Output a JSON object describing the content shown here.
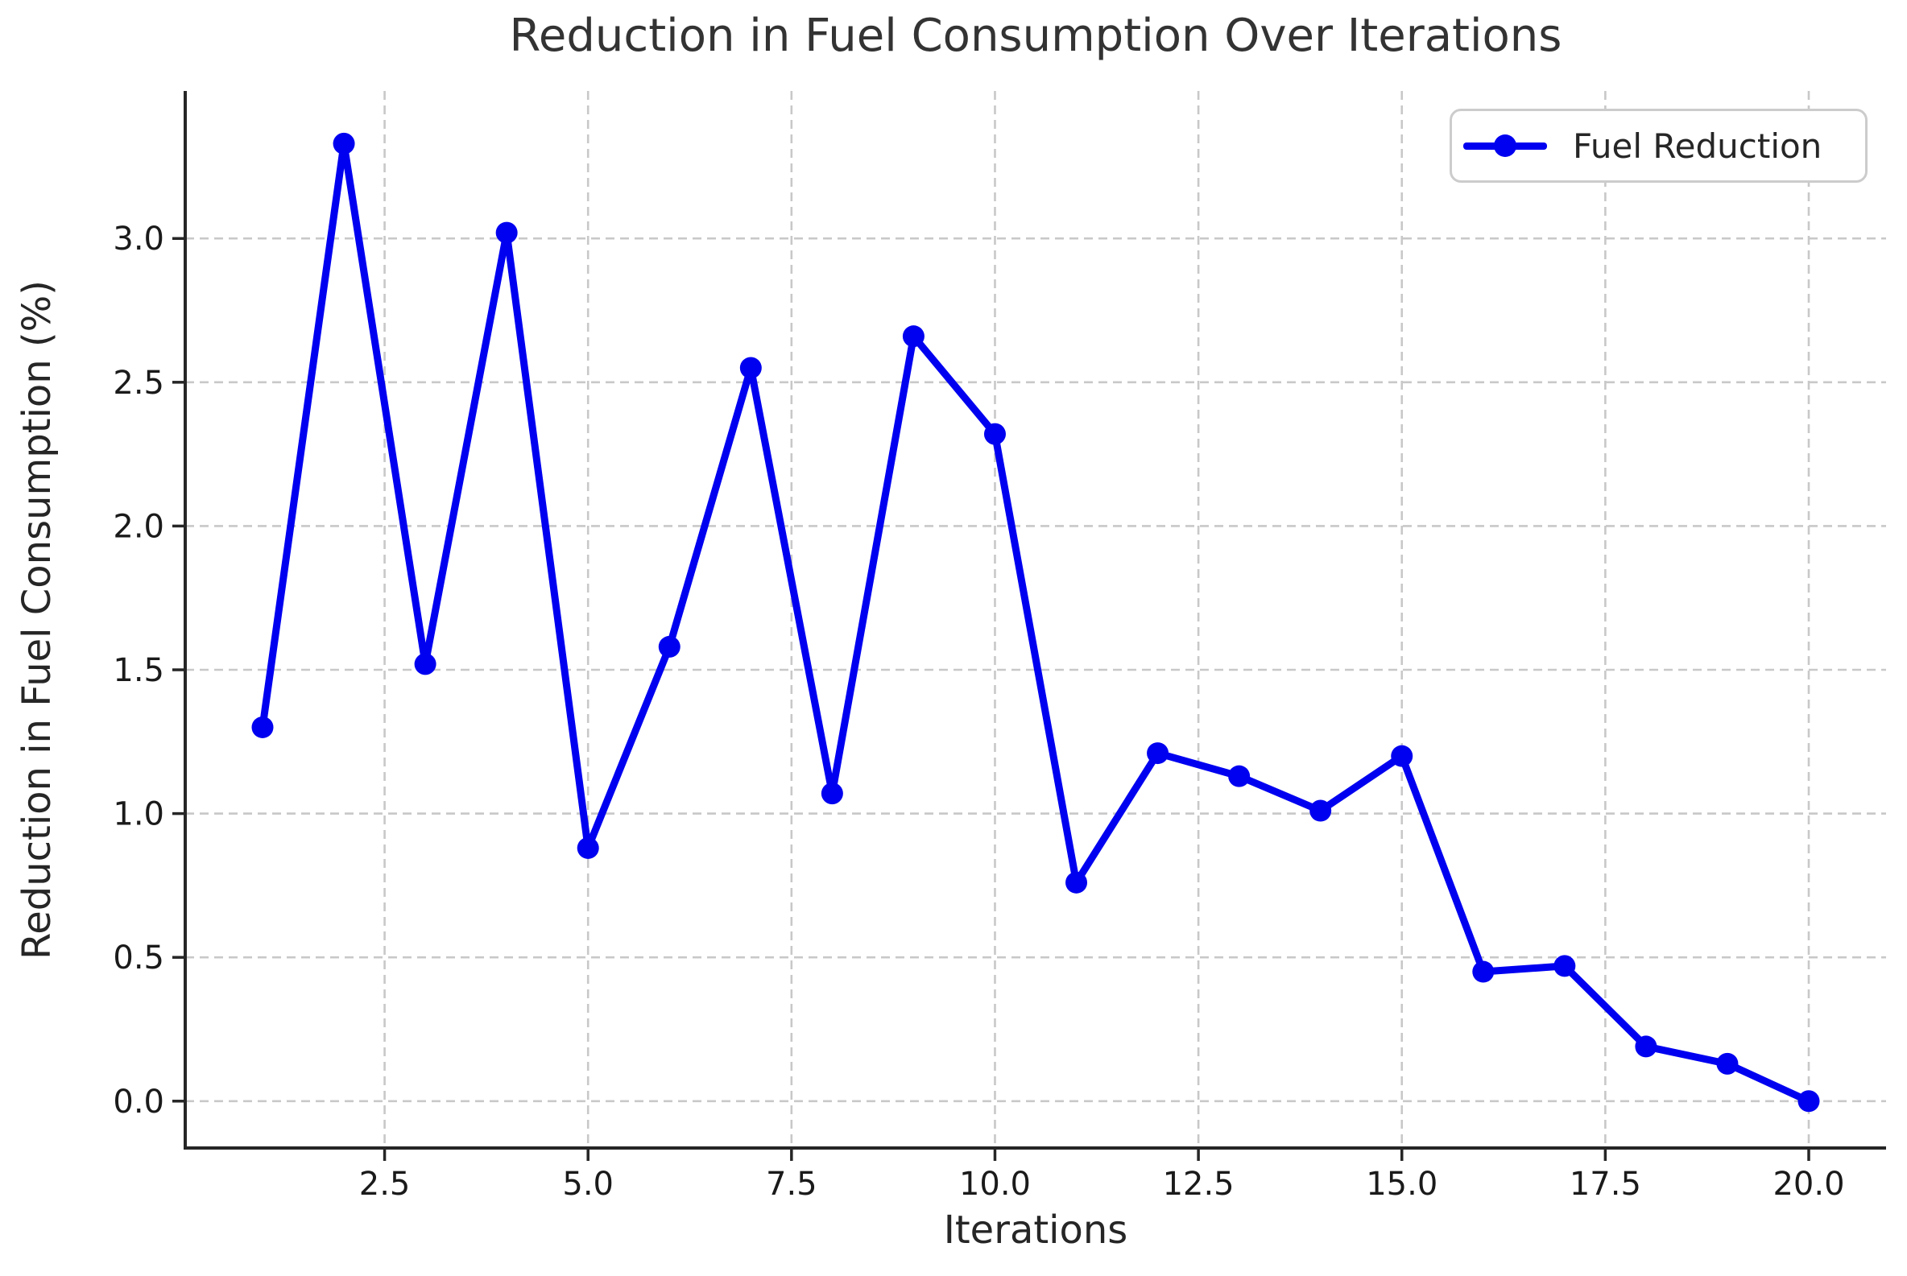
{
  "chart_data": {
    "type": "line",
    "title": "Reduction in Fuel Consumption Over Iterations",
    "xlabel": "Iterations",
    "ylabel": "Reduction in Fuel Consumption (%)",
    "legend": [
      "Fuel Reduction"
    ],
    "legend_position": "upper right",
    "grid": true,
    "grid_style": "dashed",
    "marker": "circle",
    "x": [
      1,
      2,
      3,
      4,
      5,
      6,
      7,
      8,
      9,
      10,
      11,
      12,
      13,
      14,
      15,
      16,
      17,
      18,
      19,
      20
    ],
    "series": [
      {
        "name": "Fuel Reduction",
        "values": [
          1.3,
          3.33,
          1.52,
          3.02,
          0.88,
          1.58,
          2.55,
          1.07,
          2.66,
          2.32,
          0.76,
          1.21,
          1.13,
          1.01,
          1.2,
          0.45,
          0.47,
          0.19,
          0.13,
          0.0
        ]
      }
    ],
    "xlim": [
      0.05,
      20.95
    ],
    "ylim": [
      -0.163,
      3.513
    ],
    "xticks": [
      2.5,
      5.0,
      7.5,
      10.0,
      12.5,
      15.0,
      17.5,
      20.0
    ],
    "xtick_labels": [
      "2.5",
      "5.0",
      "7.5",
      "10.0",
      "12.5",
      "15.0",
      "17.5",
      "20.0"
    ],
    "yticks": [
      0.0,
      0.5,
      1.0,
      1.5,
      2.0,
      2.5,
      3.0
    ],
    "ytick_labels": [
      "0.0",
      "0.5",
      "1.0",
      "1.5",
      "2.0",
      "2.5",
      "3.0"
    ],
    "colors": {
      "line": "#0000f0",
      "marker": "#0000f0",
      "grid": "#c8c8c8",
      "spine": "#262626",
      "tick": "#262626",
      "tick_label": "#1a1a1a",
      "title": "#333333",
      "legend_border": "#cccccc"
    }
  }
}
